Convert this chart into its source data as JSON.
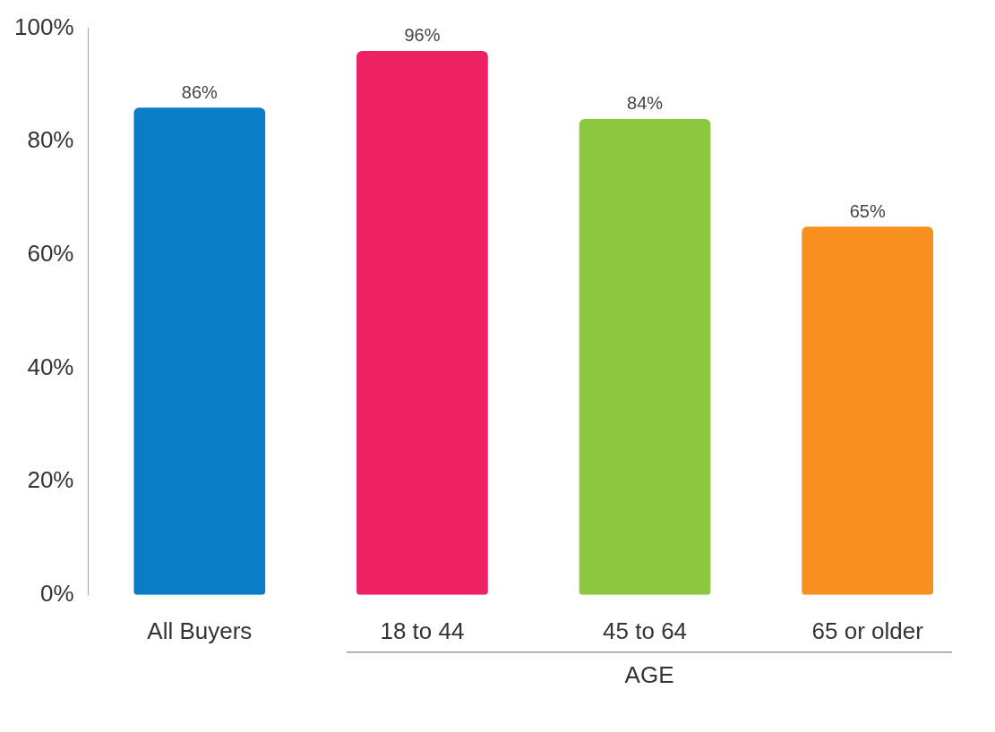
{
  "chart_data": {
    "type": "bar",
    "categories": [
      "All Buyers",
      "18 to 44",
      "45 to 64",
      "65 or older"
    ],
    "values": [
      86,
      96,
      84,
      65
    ],
    "colors": [
      "#0a7dc6",
      "#ee2263",
      "#8dc63f",
      "#f7901e"
    ],
    "value_labels": [
      "86%",
      "96%",
      "84%",
      "65%"
    ],
    "ylim": [
      0,
      100
    ],
    "yticks": [
      {
        "value": 0,
        "label": "0%"
      },
      {
        "value": 20,
        "label": "20%"
      },
      {
        "value": 40,
        "label": "40%"
      },
      {
        "value": 60,
        "label": "60%"
      },
      {
        "value": 80,
        "label": "80%"
      },
      {
        "value": 100,
        "label": "100%"
      }
    ],
    "annotations": [
      "AGE"
    ],
    "grid": false,
    "legend": false
  }
}
